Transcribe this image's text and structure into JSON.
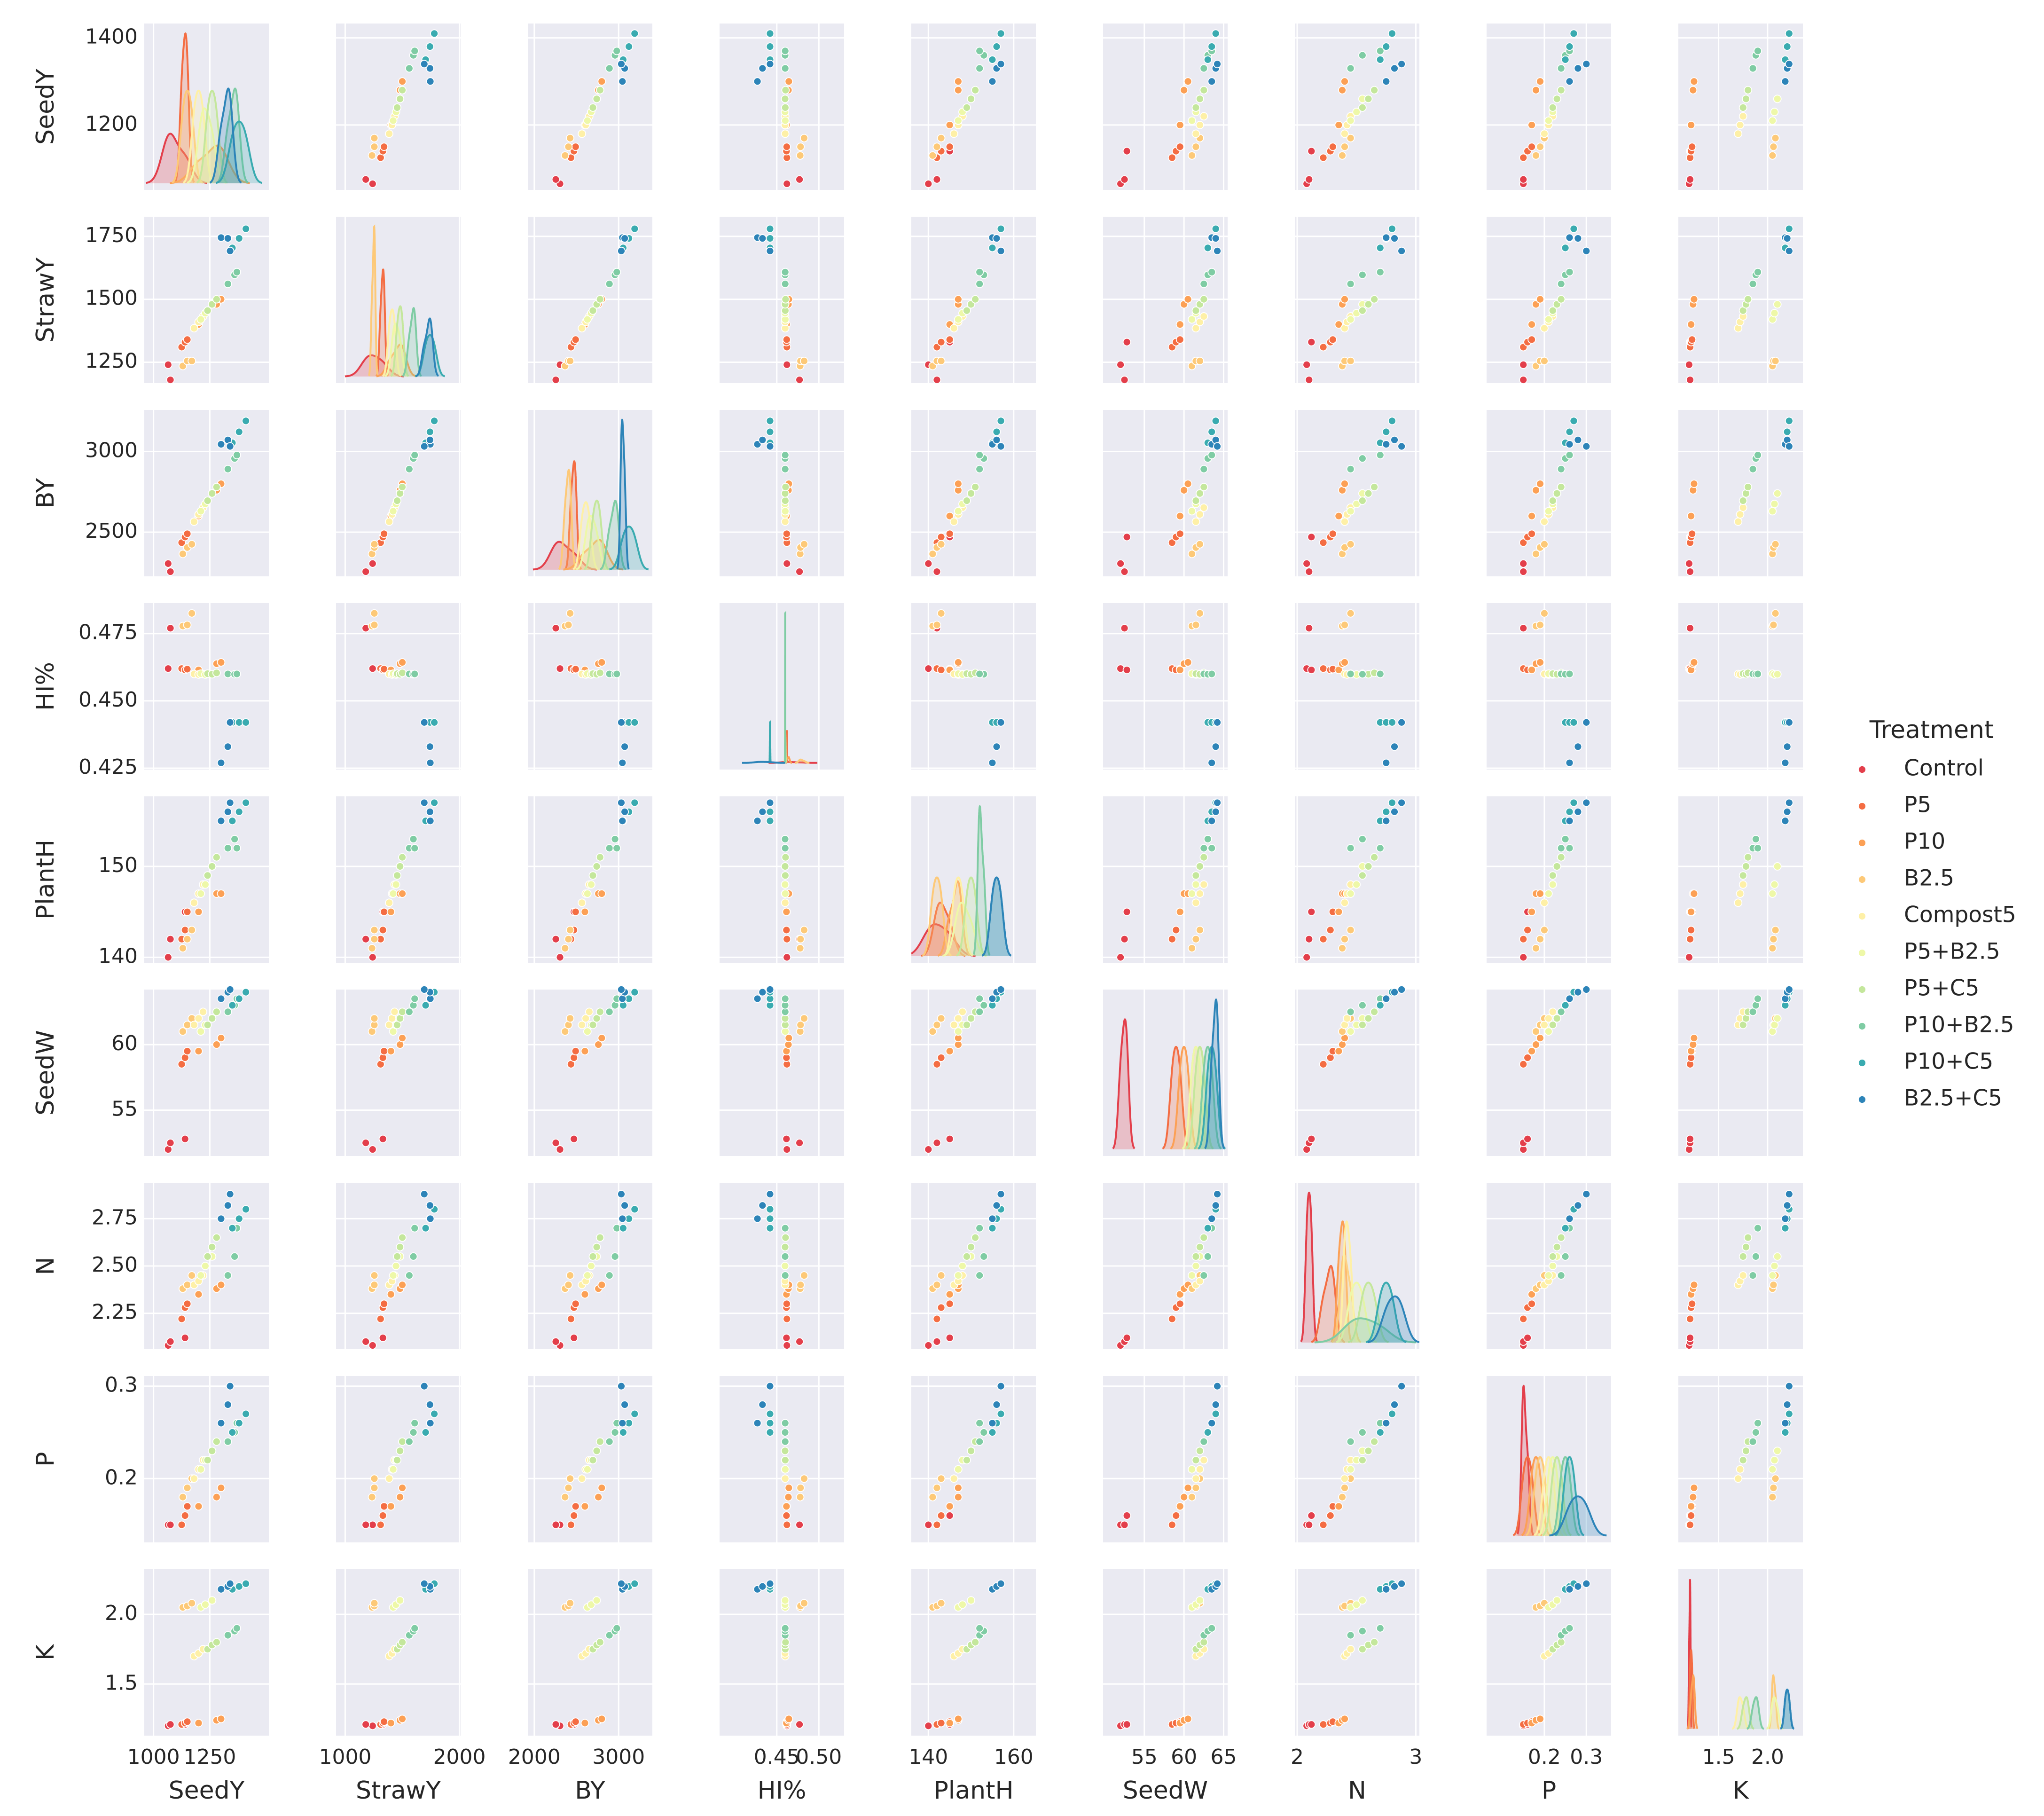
{
  "chart_data": {
    "type": "pairplot",
    "legend_title": "Treatment",
    "legend_position": "right",
    "grid": true,
    "variables": [
      "SeedY",
      "StrawY",
      "BY",
      "HI%",
      "PlantH",
      "SeedW",
      "N",
      "P",
      "K"
    ],
    "axes": [
      {
        "xlim": [
          959,
          1512
        ],
        "xticks": [
          1000,
          1250
        ],
        "ylim": [
          1051,
          1433
        ],
        "yticks": [
          1200,
          1400
        ]
      },
      {
        "xlim": [
          920,
          2010
        ],
        "xticks": [
          1000,
          2000
        ],
        "ylim": [
          1167,
          1828
        ],
        "yticks": [
          1250,
          1500,
          1750
        ]
      },
      {
        "xlim": [
          1923,
          3400
        ],
        "xticks": [
          2000,
          3000
        ],
        "ylim": [
          2226,
          3258
        ],
        "yticks": [
          2500,
          3000
        ]
      },
      {
        "xlim": [
          0.382,
          0.53
        ],
        "xticks": [
          0.45,
          {
            "value": 0.5,
            "label": "0.50"
          }
        ],
        "ylim": [
          0.4245,
          0.4863
        ],
        "yticks": [
          0.425,
          {
            "value": 0.45,
            "label": "0.450"
          },
          0.475
        ]
      },
      {
        "xlim": [
          136,
          165.2
        ],
        "xticks": [
          140,
          160
        ],
        "ylim": [
          139.4,
          157.7
        ],
        "yticks": [
          140,
          150
        ]
      },
      {
        "xlim": [
          49.8,
          65.5
        ],
        "xticks": [
          55,
          60,
          65
        ],
        "ylim": [
          51.5,
          64.2
        ],
        "yticks": [
          55,
          60
        ]
      },
      {
        "xlim": [
          1.98,
          3.03
        ],
        "xticks": [
          2,
          3
        ],
        "ylim": [
          2.06,
          2.94
        ],
        "yticks": [
          2.25,
          {
            "value": 2.5,
            "label": "2.50"
          },
          2.75
        ]
      },
      {
        "xlim": [
          0.0625,
          0.359
        ],
        "xticks": [
          0.2,
          0.3
        ],
        "ylim": [
          0.131,
          0.311
        ],
        "yticks": [
          0.2,
          0.3
        ]
      },
      {
        "xlim": [
          1.09,
          2.36
        ],
        "xticks": [
          1.5,
          {
            "value": 2,
            "label": "2.0"
          }
        ],
        "ylim": [
          1.13,
          2.324
        ],
        "yticks": [
          1.5,
          {
            "value": 2,
            "label": "2.0"
          }
        ]
      }
    ],
    "series": [
      {
        "name": "Control",
        "color": "#e33f4b",
        "values": [
          [
            1065,
            1075,
            1140
          ],
          [
            1240,
            1180,
            1330
          ],
          [
            2305,
            2255,
            2470
          ],
          [
            0.462,
            0.477,
            0.4615
          ],
          [
            140,
            142,
            145
          ],
          [
            52,
            52.5,
            52.8
          ],
          [
            2.08,
            2.1,
            2.12
          ],
          [
            0.15,
            0.15,
            0.16
          ],
          [
            1.2,
            1.21,
            1.21
          ]
        ]
      },
      {
        "name": "P5",
        "color": "#f46d43",
        "values": [
          [
            1125,
            1140,
            1150
          ],
          [
            1310,
            1330,
            1340
          ],
          [
            2435,
            2470,
            2490
          ],
          [
            0.462,
            0.4615,
            0.4618
          ],
          [
            142,
            143,
            145
          ],
          [
            58.5,
            59,
            59.5
          ],
          [
            2.22,
            2.28,
            2.3
          ],
          [
            0.15,
            0.16,
            0.17
          ],
          [
            1.21,
            1.22,
            1.23
          ]
        ]
      },
      {
        "name": "P10",
        "color": "#fca055",
        "values": [
          [
            1200,
            1280,
            1300
          ],
          [
            1400,
            1480,
            1500
          ],
          [
            2600,
            2760,
            2800
          ],
          [
            0.4615,
            0.4638,
            0.4643
          ],
          [
            145,
            147,
            147
          ],
          [
            59.5,
            60,
            60.5
          ],
          [
            2.35,
            2.38,
            2.4
          ],
          [
            0.17,
            0.18,
            0.19
          ],
          [
            1.22,
            1.24,
            1.25
          ]
        ]
      },
      {
        "name": "B2.5",
        "color": "#fdc978",
        "values": [
          [
            1130,
            1150,
            1170
          ],
          [
            1235,
            1255,
            1255
          ],
          [
            2365,
            2405,
            2425
          ],
          [
            0.4778,
            0.4782,
            0.4825
          ],
          [
            141,
            142,
            143
          ],
          [
            61,
            61.5,
            62
          ],
          [
            2.38,
            2.4,
            2.45
          ],
          [
            0.18,
            0.19,
            0.2
          ],
          [
            2.05,
            2.06,
            2.08
          ]
        ]
      },
      {
        "name": "Compost5",
        "color": "#fef0a7",
        "values": [
          [
            1180,
            1200,
            1220
          ],
          [
            1385,
            1410,
            1432
          ],
          [
            2565,
            2610,
            2652
          ],
          [
            0.46,
            0.4598,
            0.46
          ],
          [
            146,
            147,
            148
          ],
          [
            61.5,
            62,
            62.5
          ],
          [
            2.4,
            2.42,
            2.45
          ],
          [
            0.2,
            0.21,
            0.22
          ],
          [
            1.7,
            1.72,
            1.75
          ]
        ]
      },
      {
        "name": "P5+B2.5",
        "color": "#eef8a8",
        "values": [
          [
            1210,
            1230,
            1260
          ],
          [
            1420,
            1445,
            1480
          ],
          [
            2630,
            2675,
            2740
          ],
          [
            0.4601,
            0.4598,
            0.4599
          ],
          [
            147,
            148,
            150
          ],
          [
            61,
            61.5,
            62
          ],
          [
            2.45,
            2.5,
            2.55
          ],
          [
            0.21,
            0.22,
            0.23
          ],
          [
            2.05,
            2.07,
            2.1
          ]
        ]
      },
      {
        "name": "P5+C5",
        "color": "#c4e79c",
        "values": [
          [
            1240,
            1260,
            1280
          ],
          [
            1455,
            1480,
            1500
          ],
          [
            2695,
            2740,
            2780
          ],
          [
            0.4601,
            0.4599,
            0.4604
          ],
          [
            149,
            150,
            151
          ],
          [
            61.5,
            62,
            62.5
          ],
          [
            2.55,
            2.6,
            2.65
          ],
          [
            0.22,
            0.23,
            0.24
          ],
          [
            1.75,
            1.78,
            1.8
          ]
        ]
      },
      {
        "name": "P10+B2.5",
        "color": "#7fcca4",
        "values": [
          [
            1330,
            1360,
            1370
          ],
          [
            1561,
            1597,
            1608
          ],
          [
            2891,
            2957,
            2978
          ],
          [
            0.46,
            0.4599,
            0.46
          ],
          [
            152,
            153,
            152
          ],
          [
            62.5,
            63,
            63.5
          ],
          [
            2.45,
            2.55,
            2.7
          ],
          [
            0.24,
            0.25,
            0.26
          ],
          [
            1.85,
            1.88,
            1.9
          ]
        ]
      },
      {
        "name": "P10+C5",
        "color": "#3aabb0",
        "values": [
          [
            1350,
            1380,
            1410
          ],
          [
            1704,
            1742,
            1780
          ],
          [
            3054,
            3122,
            3190
          ],
          [
            0.442,
            0.442,
            0.442
          ],
          [
            155,
            156,
            157
          ],
          [
            63,
            63.5,
            64
          ],
          [
            2.7,
            2.75,
            2.8
          ],
          [
            0.25,
            0.26,
            0.27
          ],
          [
            2.18,
            2.2,
            2.22
          ]
        ]
      },
      {
        "name": "B2.5+C5",
        "color": "#2d84b8",
        "values": [
          [
            1300,
            1330,
            1340
          ],
          [
            1745,
            1742,
            1692
          ],
          [
            3045,
            3072,
            3032
          ],
          [
            0.427,
            0.433,
            0.442
          ],
          [
            155,
            156,
            157
          ],
          [
            63.5,
            64,
            64.2
          ],
          [
            2.75,
            2.82,
            2.88
          ],
          [
            0.26,
            0.28,
            0.3
          ],
          [
            2.18,
            2.2,
            2.22
          ]
        ]
      }
    ]
  }
}
